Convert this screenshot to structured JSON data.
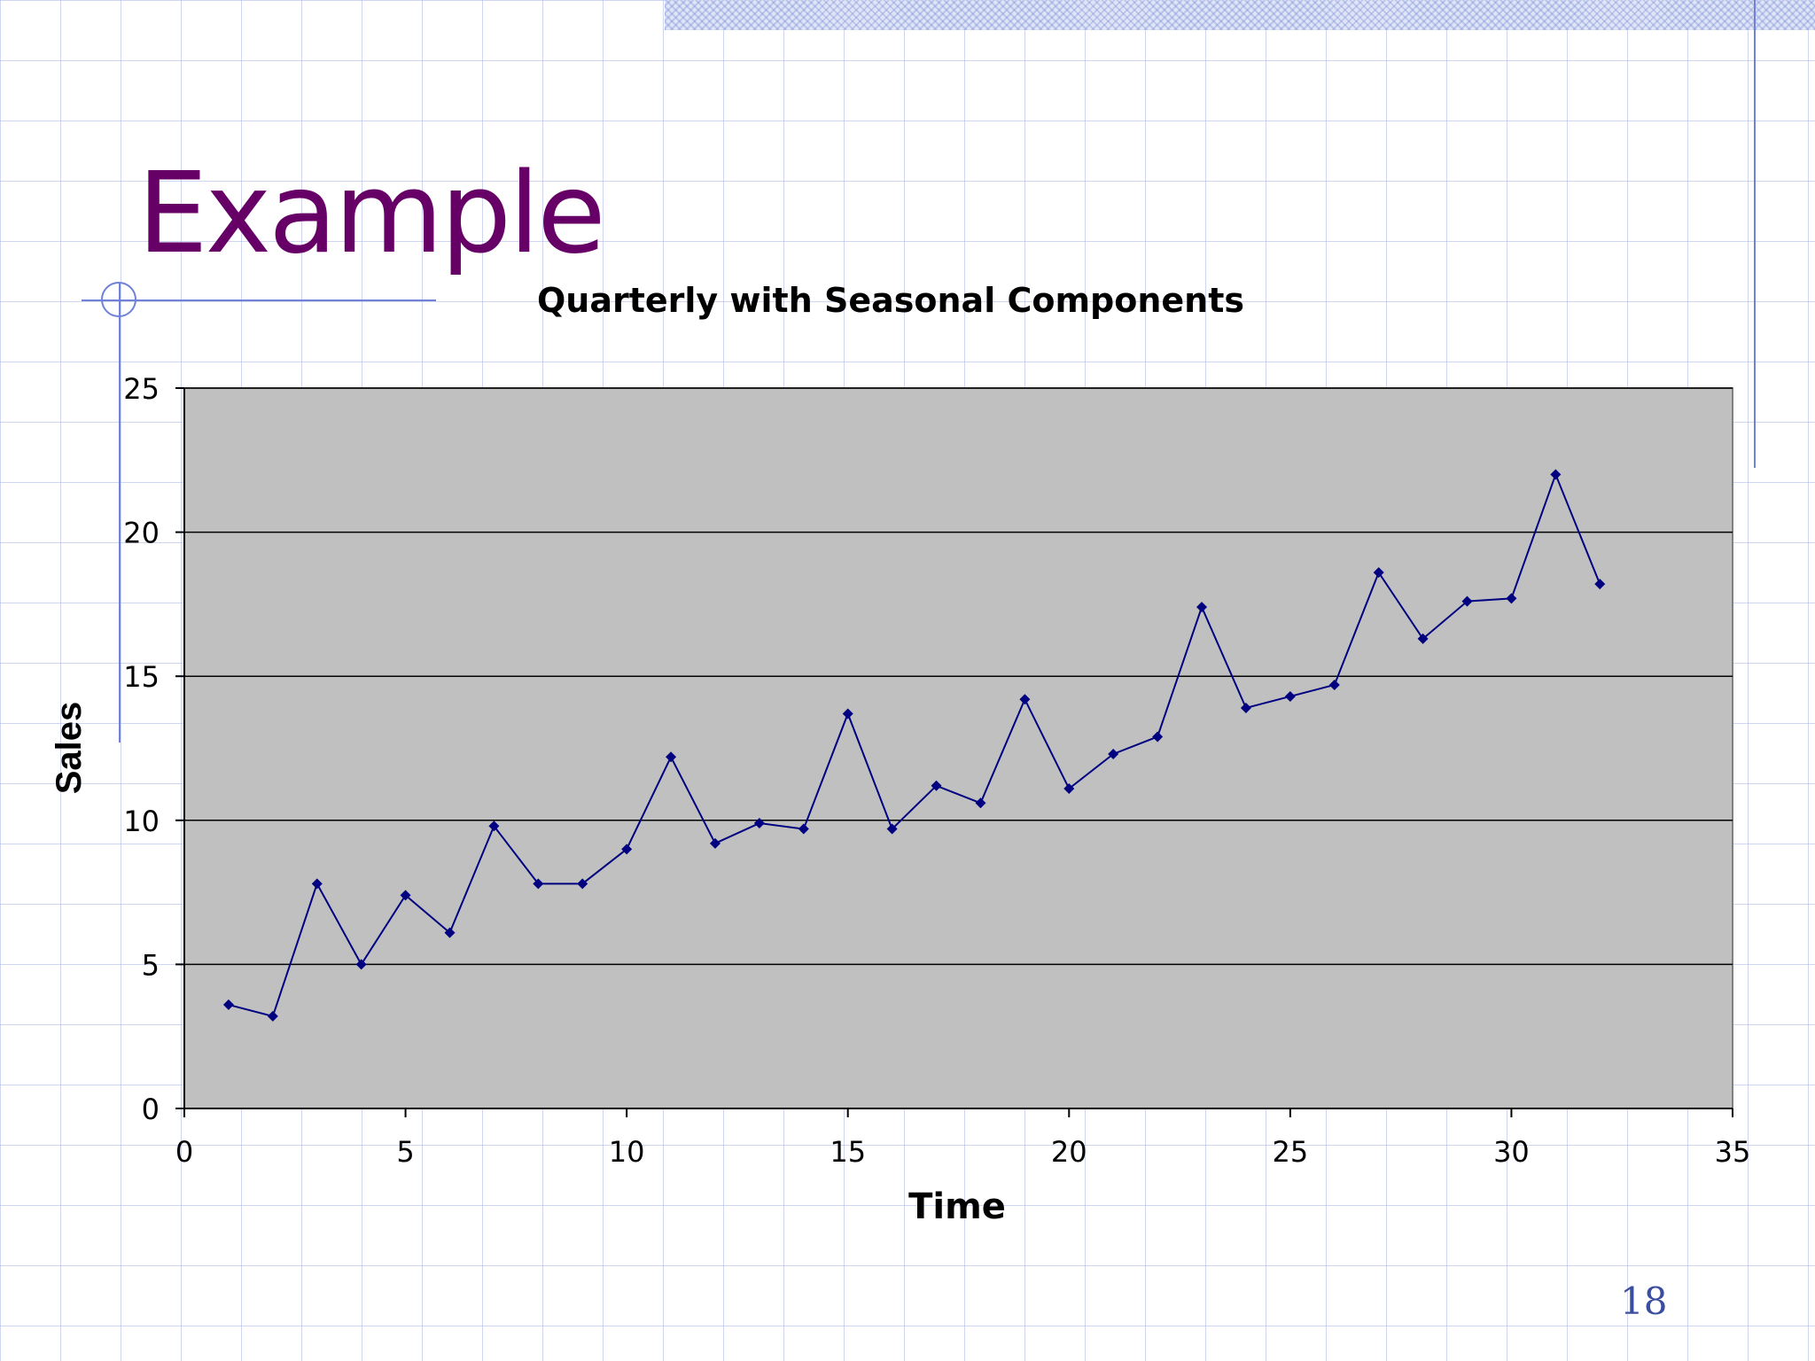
{
  "slide": {
    "title": "Example",
    "page_number": "18"
  },
  "chart_data": {
    "type": "line",
    "title": "Quarterly with Seasonal Components",
    "xlabel": "Time",
    "ylabel": "Sales",
    "xlim": [
      0,
      35
    ],
    "ylim": [
      0,
      25
    ],
    "x_ticks": [
      0,
      5,
      10,
      15,
      20,
      25,
      30,
      35
    ],
    "y_ticks": [
      0,
      5,
      10,
      15,
      20,
      25
    ],
    "grid": "horizontal",
    "legend": "none",
    "plot_background": "#c0c0c0",
    "series": [
      {
        "color": "#000080",
        "marker": "diamond",
        "x": [
          1,
          2,
          3,
          4,
          5,
          6,
          7,
          8,
          9,
          10,
          11,
          12,
          13,
          14,
          15,
          16,
          17,
          18,
          19,
          20,
          21,
          22,
          23,
          24,
          25,
          26,
          27,
          28,
          29,
          30,
          31,
          32
        ],
        "y": [
          3.6,
          3.2,
          7.8,
          5.0,
          7.4,
          6.1,
          9.8,
          7.8,
          7.8,
          9.0,
          12.2,
          9.2,
          9.9,
          9.7,
          13.7,
          9.7,
          11.2,
          10.6,
          14.2,
          11.1,
          12.3,
          12.9,
          17.4,
          13.9,
          14.3,
          14.7,
          18.6,
          16.3,
          17.6,
          17.7,
          22.0,
          18.2
        ]
      }
    ]
  }
}
